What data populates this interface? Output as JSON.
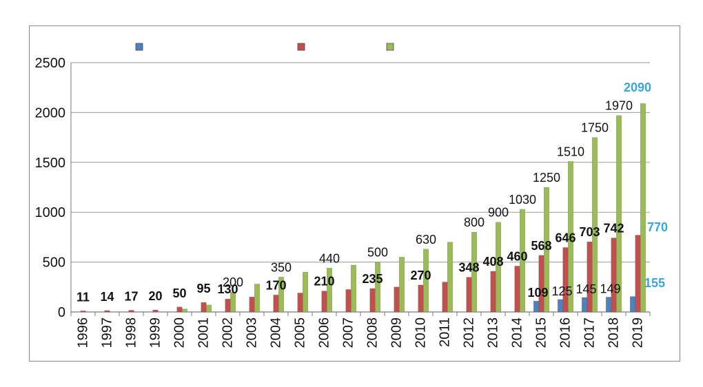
{
  "chart_data": {
    "type": "bar",
    "title": "",
    "xlabel": "",
    "ylabel": "",
    "ylim": [
      0,
      2500
    ],
    "yticks": [
      0,
      500,
      1000,
      1500,
      2000,
      2500
    ],
    "grid": "horizontal",
    "legend_position": "top",
    "categories": [
      "1996",
      "1997",
      "1998",
      "1999",
      "2000",
      "2001",
      "2002",
      "2003",
      "2004",
      "2005",
      "2006",
      "2007",
      "2008",
      "2009",
      "2010",
      "2011",
      "2012",
      "2013",
      "2014",
      "2015",
      "2016",
      "2017",
      "2018",
      "2019"
    ],
    "series": [
      {
        "color": "#4f81bd",
        "values": [
          0,
          0,
          0,
          0,
          0,
          0,
          0,
          0,
          0,
          0,
          0,
          0,
          0,
          0,
          0,
          0,
          0,
          0,
          0,
          109,
          125,
          145,
          149,
          155
        ],
        "labels": [
          "",
          "",
          "",
          "",
          "",
          "",
          "",
          "",
          "",
          "",
          "",
          "",
          "",
          "",
          "",
          "",
          "",
          "",
          "",
          "109",
          "125",
          "145",
          "149",
          "155"
        ],
        "label_styles": [
          "",
          "",
          "",
          "",
          "",
          "",
          "",
          "",
          "",
          "",
          "",
          "",
          "",
          "",
          "",
          "",
          "",
          "",
          "",
          "bold",
          "normal",
          "normal",
          "normal",
          "blue"
        ]
      },
      {
        "color": "#c0504d",
        "values": [
          11,
          14,
          17,
          20,
          50,
          95,
          130,
          150,
          170,
          190,
          210,
          225,
          235,
          250,
          270,
          300,
          348,
          408,
          460,
          568,
          646,
          703,
          742,
          770
        ],
        "labels": [
          "11",
          "14",
          "17",
          "20",
          "50",
          "95",
          "130",
          "",
          "170",
          "",
          "210",
          "",
          "235",
          "",
          "270",
          "",
          "348",
          "408",
          "460",
          "568",
          "646",
          "703",
          "742",
          "770"
        ],
        "label_styles": [
          "bold",
          "bold",
          "bold",
          "bold",
          "bold",
          "bold",
          "bold",
          "",
          "bold",
          "",
          "bold",
          "",
          "bold",
          "",
          "bold",
          "",
          "bold",
          "bold",
          "bold",
          "bold",
          "bold",
          "bold",
          "bold",
          "blue"
        ]
      },
      {
        "color": "#9bbb59",
        "values": [
          0,
          0,
          0,
          0,
          30,
          70,
          200,
          280,
          350,
          400,
          440,
          470,
          500,
          550,
          630,
          700,
          800,
          900,
          1030,
          1250,
          1510,
          1750,
          1970,
          2090
        ],
        "labels": [
          "",
          "",
          "",
          "",
          "",
          "",
          "200",
          "",
          "350",
          "",
          "440",
          "",
          "500",
          "",
          "630",
          "",
          "800",
          "900",
          "1030",
          "1250",
          "1510",
          "1750",
          "1970",
          "2090"
        ],
        "label_styles": [
          "",
          "",
          "",
          "",
          "",
          "",
          "normal",
          "",
          "normal",
          "",
          "normal",
          "",
          "normal",
          "",
          "normal",
          "",
          "normal",
          "normal",
          "normal",
          "normal",
          "normal",
          "normal",
          "normal",
          "blue"
        ]
      }
    ]
  }
}
